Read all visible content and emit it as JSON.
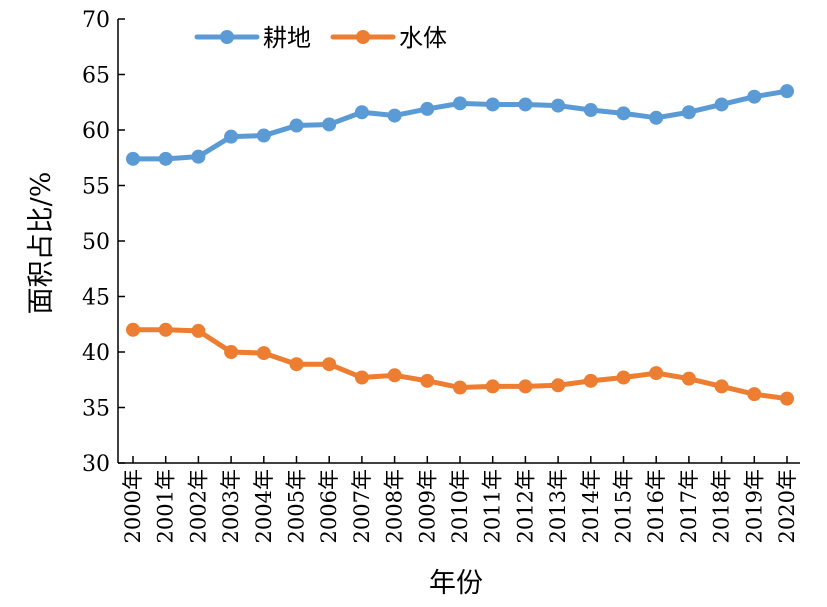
{
  "chart_data": {
    "type": "line",
    "title": "",
    "xlabel": "年份",
    "ylabel": "面积占比/%",
    "ylim": [
      30,
      70
    ],
    "yticks": [
      30,
      35,
      40,
      45,
      50,
      55,
      60,
      65,
      70
    ],
    "grid": false,
    "legend_position": "top-left",
    "categories": [
      "2000年",
      "2001年",
      "2002年",
      "2003年",
      "2004年",
      "2005年",
      "2006年",
      "2007年",
      "2008年",
      "2009年",
      "2010年",
      "2011年",
      "2012年",
      "2013年",
      "2014年",
      "2015年",
      "2016年",
      "2017年",
      "2018年",
      "2019年",
      "2020年"
    ],
    "series": [
      {
        "name": "耕地",
        "color": "#5B9BD5",
        "values": [
          57.4,
          57.4,
          57.6,
          59.4,
          59.5,
          60.4,
          60.5,
          61.6,
          61.3,
          61.9,
          62.4,
          62.3,
          62.3,
          62.2,
          61.8,
          61.5,
          61.1,
          61.6,
          62.3,
          63.0,
          63.5
        ]
      },
      {
        "name": "水体",
        "color": "#ED7D31",
        "values": [
          42.0,
          42.0,
          41.9,
          40.0,
          39.9,
          38.9,
          38.9,
          37.7,
          37.9,
          37.4,
          36.8,
          36.9,
          36.9,
          37.0,
          37.4,
          37.7,
          38.1,
          37.6,
          36.9,
          36.2,
          35.8
        ]
      }
    ]
  }
}
